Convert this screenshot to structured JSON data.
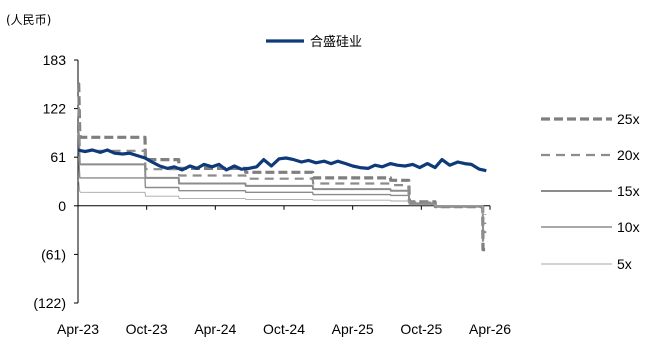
{
  "chart_data": {
    "type": "line",
    "unit_label": "(人民币)",
    "y_ticks": [
      {
        "value": 183,
        "label": "183"
      },
      {
        "value": 122,
        "label": "122"
      },
      {
        "value": 61,
        "label": "61"
      },
      {
        "value": 0,
        "label": "0"
      },
      {
        "value": -61,
        "label": "(61)"
      },
      {
        "value": -122,
        "label": "(122)"
      }
    ],
    "ylim": [
      -122,
      183
    ],
    "x_ticks": [
      "Apr-23",
      "Oct-23",
      "Apr-24",
      "Oct-24",
      "Apr-25",
      "Oct-25",
      "Apr-26"
    ],
    "xlim": [
      "2023-04-01",
      "2026-04-30"
    ],
    "grid": false,
    "legend_position": "top-center, right",
    "series": [
      {
        "name": "合盛硅业",
        "color": "#0f3a7a",
        "style": "solid-thick",
        "x": [
          "2023-04-01",
          "2023-04-20",
          "2023-05-10",
          "2023-06-01",
          "2023-06-20",
          "2023-07-10",
          "2023-08-01",
          "2023-08-20",
          "2023-09-10",
          "2023-10-01",
          "2023-10-20",
          "2023-11-10",
          "2023-12-01",
          "2023-12-20",
          "2024-01-10",
          "2024-02-01",
          "2024-02-20",
          "2024-03-10",
          "2024-04-01",
          "2024-04-20",
          "2024-05-10",
          "2024-06-01",
          "2024-06-20",
          "2024-07-10",
          "2024-08-01",
          "2024-08-20",
          "2024-09-10",
          "2024-10-01",
          "2024-10-20",
          "2024-11-10",
          "2024-12-01",
          "2024-12-20",
          "2025-01-10",
          "2025-02-01",
          "2025-02-20",
          "2025-03-10",
          "2025-04-01",
          "2025-04-20",
          "2025-05-10",
          "2025-06-01",
          "2025-06-20",
          "2025-07-10",
          "2025-08-01",
          "2025-08-20",
          "2025-09-10",
          "2025-10-01",
          "2025-10-20",
          "2025-11-10",
          "2025-12-01",
          "2025-12-20",
          "2026-01-10",
          "2026-02-01",
          "2026-02-20",
          "2026-03-10",
          "2026-04-01",
          "2026-04-20"
        ],
        "values": [
          70,
          68,
          70,
          67,
          70,
          66,
          65,
          66,
          63,
          60,
          55,
          50,
          47,
          49,
          45,
          50,
          47,
          52,
          49,
          52,
          45,
          50,
          46,
          47,
          49,
          58,
          50,
          59,
          60,
          58,
          55,
          57,
          54,
          56,
          53,
          56,
          53,
          50,
          48,
          47,
          51,
          49,
          53,
          51,
          50,
          52,
          48,
          53,
          48,
          58,
          51,
          55,
          53,
          52,
          46,
          44
        ]
      },
      {
        "name": "25x",
        "color": "#7f7f7f",
        "style": "dashed-thick",
        "x": [
          "2023-04-01",
          "2023-04-03",
          "2023-04-06",
          "2023-04-08",
          "2023-10-01",
          "2023-10-02",
          "2024-01-01",
          "2024-01-02",
          "2024-07-01",
          "2024-07-02",
          "2025-01-01",
          "2025-01-02",
          "2025-08-01",
          "2025-08-02",
          "2025-09-20",
          "2025-09-22",
          "2025-12-01",
          "2025-12-02",
          "2026-04-10",
          "2026-04-11",
          "2026-04-20"
        ],
        "values": [
          153,
          153,
          88,
          86,
          86,
          58,
          58,
          47,
          47,
          42,
          42,
          35,
          35,
          32,
          32,
          5,
          5,
          -1,
          -1,
          -55,
          -55
        ]
      },
      {
        "name": "20x",
        "color": "#8c8c8c",
        "style": "dashed-thin",
        "x": [
          "2023-04-01",
          "2023-04-03",
          "2023-04-06",
          "2023-04-08",
          "2023-10-01",
          "2023-10-02",
          "2024-01-01",
          "2024-01-02",
          "2024-07-01",
          "2024-07-02",
          "2025-01-01",
          "2025-01-02",
          "2025-08-01",
          "2025-08-02",
          "2025-09-20",
          "2025-09-22",
          "2025-12-01",
          "2025-12-02",
          "2026-04-10",
          "2026-04-11",
          "2026-04-20"
        ],
        "values": [
          123,
          123,
          70,
          69,
          69,
          46,
          46,
          38,
          38,
          34,
          34,
          28,
          28,
          26,
          26,
          4,
          4,
          -1,
          -1,
          -44,
          -44
        ]
      },
      {
        "name": "15x",
        "color": "#8c8c8c",
        "style": "solid-medium",
        "x": [
          "2023-04-01",
          "2023-04-03",
          "2023-04-06",
          "2023-04-08",
          "2023-10-01",
          "2023-10-02",
          "2024-01-01",
          "2024-01-02",
          "2024-07-01",
          "2024-07-02",
          "2025-01-01",
          "2025-01-02",
          "2025-08-01",
          "2025-08-02",
          "2025-09-20",
          "2025-09-22",
          "2025-12-01",
          "2025-12-02",
          "2026-04-10",
          "2026-04-11",
          "2026-04-20"
        ],
        "values": [
          92,
          92,
          53,
          52,
          52,
          35,
          35,
          28,
          28,
          25,
          25,
          21,
          21,
          19,
          19,
          3,
          3,
          -1,
          -1,
          -33,
          -33
        ]
      },
      {
        "name": "10x",
        "color": "#8c8c8c",
        "style": "solid-thin",
        "x": [
          "2023-04-01",
          "2023-04-03",
          "2023-04-06",
          "2023-04-08",
          "2023-10-01",
          "2023-10-02",
          "2024-01-01",
          "2024-01-02",
          "2024-07-01",
          "2024-07-02",
          "2025-01-01",
          "2025-01-02",
          "2025-08-01",
          "2025-08-02",
          "2025-09-20",
          "2025-09-22",
          "2025-12-01",
          "2025-12-02",
          "2026-04-10",
          "2026-04-11",
          "2026-04-20"
        ],
        "values": [
          61,
          61,
          35,
          35,
          35,
          23,
          23,
          19,
          19,
          17,
          17,
          14,
          14,
          13,
          13,
          2,
          2,
          -1,
          -1,
          -22,
          -22
        ]
      },
      {
        "name": "5x",
        "color": "#a6a6a6",
        "style": "solid-hair",
        "x": [
          "2023-04-01",
          "2023-04-03",
          "2023-04-06",
          "2023-04-08",
          "2023-10-01",
          "2023-10-02",
          "2024-01-01",
          "2024-01-02",
          "2024-07-01",
          "2024-07-02",
          "2025-01-01",
          "2025-01-02",
          "2025-08-01",
          "2025-08-02",
          "2025-09-20",
          "2025-09-22",
          "2025-12-01",
          "2025-12-02",
          "2026-04-10",
          "2026-04-11",
          "2026-04-20"
        ],
        "values": [
          31,
          31,
          18,
          17,
          17,
          12,
          12,
          9,
          9,
          8,
          8,
          7,
          7,
          6,
          6,
          1,
          1,
          0,
          0,
          -11,
          -11
        ]
      }
    ]
  }
}
